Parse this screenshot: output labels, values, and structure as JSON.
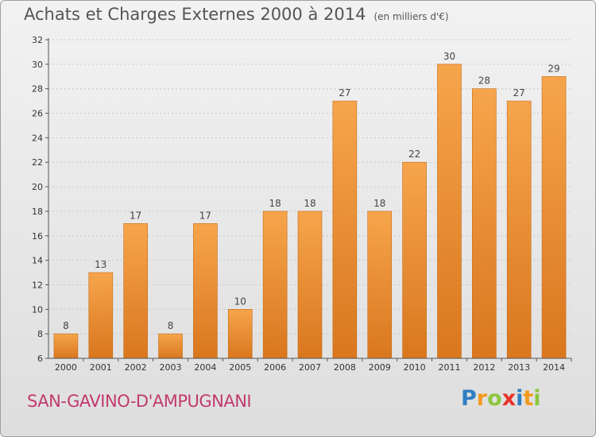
{
  "header": {
    "title": "Achats et Charges Externes 2000 à 2014",
    "subtitle": "(en milliers d'€)"
  },
  "footer": {
    "commune": "SAN-GAVINO-D'AMPUGNANI",
    "logo_letters": [
      "P",
      "r",
      "o",
      "x",
      "i",
      "t",
      "i"
    ],
    "logo_colors": [
      "#2f7fc1",
      "#f39a1e",
      "#8cc63f",
      "#e8332a",
      "#2f7fc1",
      "#f39a1e",
      "#8cc63f"
    ]
  },
  "colors": {
    "bar_top": "#f6a54c",
    "bar_bottom": "#d9771e",
    "bar_edge": "#c96a14",
    "grid": "#c8c8c8",
    "axis": "#555555"
  },
  "chart_data": {
    "type": "bar",
    "title": "Achats et Charges Externes 2000 à 2014",
    "subtitle": "(en milliers d'€)",
    "xlabel": "",
    "ylabel": "",
    "categories": [
      "2000",
      "2001",
      "2002",
      "2003",
      "2004",
      "2005",
      "2006",
      "2007",
      "2008",
      "2009",
      "2010",
      "2011",
      "2012",
      "2013",
      "2014"
    ],
    "values": [
      8,
      13,
      17,
      8,
      17,
      10,
      18,
      18,
      27,
      18,
      22,
      30,
      28,
      27,
      29
    ],
    "ylim": [
      6,
      32
    ],
    "yticks": [
      "6",
      "8",
      "10",
      "12",
      "14",
      "16",
      "18",
      "20",
      "22",
      "24",
      "26",
      "28",
      "30",
      "32"
    ],
    "grid": true,
    "legend": "none"
  }
}
